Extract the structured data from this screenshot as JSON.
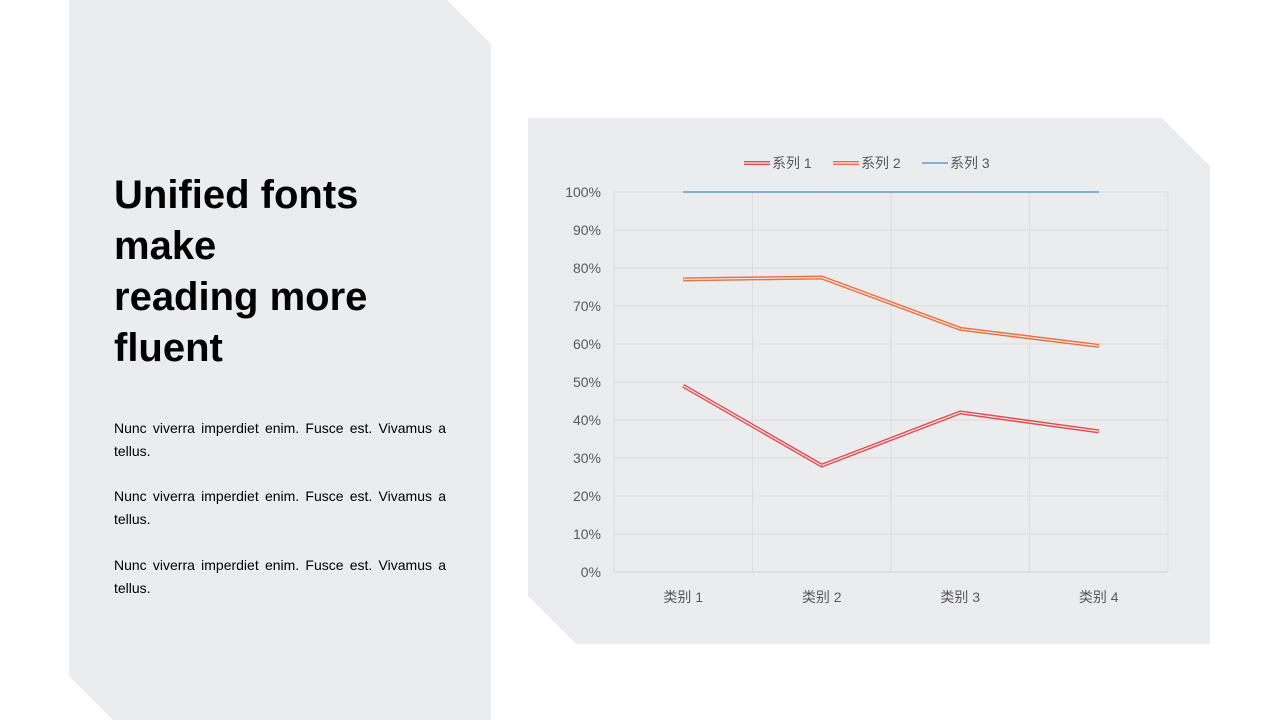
{
  "title_lines": [
    "Unified fonts",
    "make",
    "reading more",
    "fluent"
  ],
  "paragraphs": [
    "Nunc viverra imperdiet enim. Fusce est. Vivamus a tellus.",
    "Nunc viverra imperdiet enim. Fusce est. Vivamus a tellus.",
    "Nunc viverra imperdiet enim. Fusce est. Vivamus a tellus."
  ],
  "chart_data": {
    "type": "line",
    "categories": [
      "类别 1",
      "类别 2",
      "类别 3",
      "类别 4"
    ],
    "series": [
      {
        "name": "系列 1",
        "values": [
          0.49,
          0.28,
          0.42,
          0.37
        ],
        "color": "#e8474b"
      },
      {
        "name": "系列 2",
        "values": [
          0.77,
          0.775,
          0.64,
          0.595
        ],
        "color": "#ee6e3c"
      },
      {
        "name": "系列 3",
        "values": [
          1.0,
          1.0,
          1.0,
          1.0
        ],
        "color": "#5b9bd5"
      }
    ],
    "ylim": [
      0,
      1
    ],
    "yticks": [
      "0%",
      "10%",
      "20%",
      "30%",
      "40%",
      "50%",
      "60%",
      "70%",
      "80%",
      "90%",
      "100%"
    ],
    "legend_position": "top",
    "grid": true
  }
}
